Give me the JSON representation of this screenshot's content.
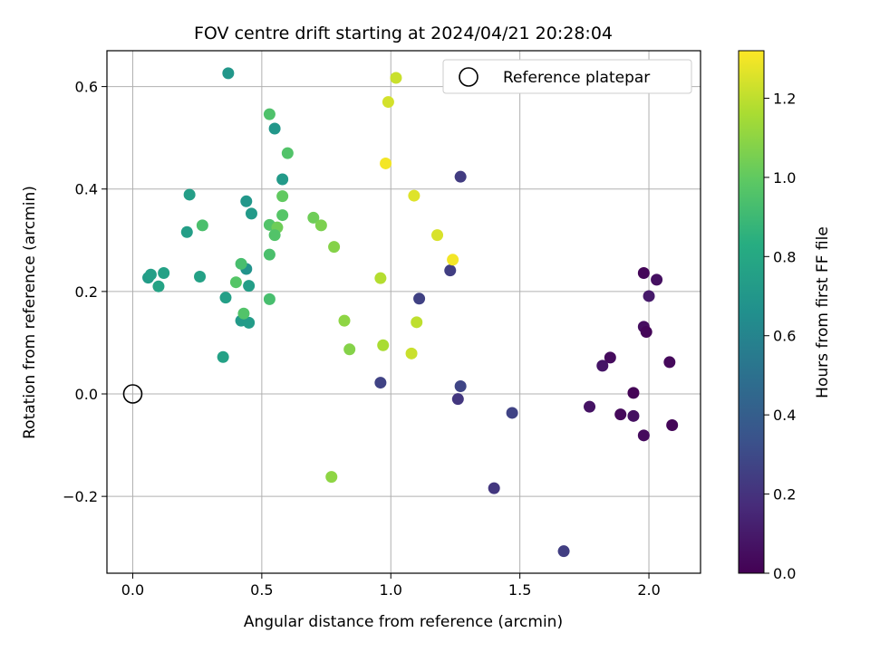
{
  "chart_data": {
    "type": "scatter",
    "title": "FOV centre drift starting at 2024/04/21 20:28:04",
    "xlabel": "Angular distance from reference (arcmin)",
    "ylabel": "Rotation from reference (arcmin)",
    "xlim": [
      -0.1,
      2.2
    ],
    "ylim": [
      -0.35,
      0.67
    ],
    "xticks": [
      0.0,
      0.5,
      1.0,
      1.5,
      2.0
    ],
    "xtick_labels": [
      "0.0",
      "0.5",
      "1.0",
      "1.5",
      "2.0"
    ],
    "yticks": [
      -0.2,
      0.0,
      0.2,
      0.4,
      0.6
    ],
    "ytick_labels": [
      "−0.2",
      "0.0",
      "0.2",
      "0.4",
      "0.6"
    ],
    "grid": true,
    "legend": {
      "placement": "upper-right",
      "entries": [
        "Reference platepar"
      ]
    },
    "reference_point": {
      "x": 0.0,
      "y": 0.0,
      "marker": "open-circle"
    },
    "colorbar": {
      "label": "Hours from first FF file",
      "range": [
        0.0,
        1.32
      ],
      "ticks": [
        0.0,
        0.2,
        0.4,
        0.6,
        0.8,
        1.0,
        1.2
      ],
      "tick_labels": [
        "0.0",
        "0.2",
        "0.4",
        "0.6",
        "0.8",
        "1.0",
        "1.2"
      ],
      "colormap": "viridis"
    },
    "points": [
      {
        "x": 1.98,
        "y": 0.236,
        "c": 0.02
      },
      {
        "x": 2.03,
        "y": 0.223,
        "c": 0.06
      },
      {
        "x": 2.0,
        "y": 0.191,
        "c": 0.1
      },
      {
        "x": 1.98,
        "y": 0.131,
        "c": 0.05
      },
      {
        "x": 1.99,
        "y": 0.121,
        "c": 0.02
      },
      {
        "x": 1.85,
        "y": 0.071,
        "c": 0.04
      },
      {
        "x": 1.82,
        "y": 0.055,
        "c": 0.08
      },
      {
        "x": 2.08,
        "y": 0.062,
        "c": 0.03
      },
      {
        "x": 1.94,
        "y": 0.002,
        "c": 0.01
      },
      {
        "x": 1.77,
        "y": -0.025,
        "c": 0.07
      },
      {
        "x": 1.89,
        "y": -0.04,
        "c": 0.03
      },
      {
        "x": 1.94,
        "y": -0.043,
        "c": 0.06
      },
      {
        "x": 2.09,
        "y": -0.061,
        "c": 0.02
      },
      {
        "x": 1.98,
        "y": -0.081,
        "c": 0.04
      },
      {
        "x": 1.27,
        "y": 0.424,
        "c": 0.24
      },
      {
        "x": 1.23,
        "y": 0.241,
        "c": 0.25
      },
      {
        "x": 1.11,
        "y": 0.186,
        "c": 0.26
      },
      {
        "x": 0.96,
        "y": 0.022,
        "c": 0.27
      },
      {
        "x": 1.27,
        "y": 0.015,
        "c": 0.28
      },
      {
        "x": 1.26,
        "y": -0.01,
        "c": 0.22
      },
      {
        "x": 1.47,
        "y": -0.037,
        "c": 0.27
      },
      {
        "x": 1.4,
        "y": -0.184,
        "c": 0.22
      },
      {
        "x": 1.67,
        "y": -0.307,
        "c": 0.25
      },
      {
        "x": 0.37,
        "y": 0.626,
        "c": 0.7
      },
      {
        "x": 0.55,
        "y": 0.518,
        "c": 0.7
      },
      {
        "x": 0.58,
        "y": 0.419,
        "c": 0.72
      },
      {
        "x": 0.22,
        "y": 0.389,
        "c": 0.74
      },
      {
        "x": 0.44,
        "y": 0.376,
        "c": 0.7
      },
      {
        "x": 0.46,
        "y": 0.352,
        "c": 0.72
      },
      {
        "x": 0.21,
        "y": 0.316,
        "c": 0.74
      },
      {
        "x": 0.44,
        "y": 0.244,
        "c": 0.68
      },
      {
        "x": 0.06,
        "y": 0.227,
        "c": 0.73
      },
      {
        "x": 0.07,
        "y": 0.233,
        "c": 0.75
      },
      {
        "x": 0.12,
        "y": 0.236,
        "c": 0.76
      },
      {
        "x": 0.26,
        "y": 0.229,
        "c": 0.76
      },
      {
        "x": 0.1,
        "y": 0.21,
        "c": 0.77
      },
      {
        "x": 0.45,
        "y": 0.211,
        "c": 0.74
      },
      {
        "x": 0.36,
        "y": 0.188,
        "c": 0.75
      },
      {
        "x": 0.42,
        "y": 0.143,
        "c": 0.72
      },
      {
        "x": 0.45,
        "y": 0.139,
        "c": 0.73
      },
      {
        "x": 0.35,
        "y": 0.072,
        "c": 0.76
      },
      {
        "x": 0.53,
        "y": 0.546,
        "c": 0.95
      },
      {
        "x": 0.6,
        "y": 0.47,
        "c": 0.96
      },
      {
        "x": 0.58,
        "y": 0.386,
        "c": 1.0
      },
      {
        "x": 0.58,
        "y": 0.349,
        "c": 0.97
      },
      {
        "x": 0.27,
        "y": 0.329,
        "c": 0.94
      },
      {
        "x": 0.53,
        "y": 0.33,
        "c": 0.96
      },
      {
        "x": 0.56,
        "y": 0.325,
        "c": 1.03
      },
      {
        "x": 0.55,
        "y": 0.31,
        "c": 0.96
      },
      {
        "x": 0.53,
        "y": 0.272,
        "c": 0.94
      },
      {
        "x": 0.42,
        "y": 0.254,
        "c": 0.93
      },
      {
        "x": 0.4,
        "y": 0.218,
        "c": 0.97
      },
      {
        "x": 0.53,
        "y": 0.185,
        "c": 0.93
      },
      {
        "x": 0.43,
        "y": 0.157,
        "c": 0.96
      },
      {
        "x": 0.7,
        "y": 0.344,
        "c": 1.03
      },
      {
        "x": 0.73,
        "y": 0.329,
        "c": 1.06
      },
      {
        "x": 0.78,
        "y": 0.287,
        "c": 1.08
      },
      {
        "x": 0.82,
        "y": 0.143,
        "c": 1.1
      },
      {
        "x": 0.84,
        "y": 0.087,
        "c": 1.08
      },
      {
        "x": 0.77,
        "y": -0.162,
        "c": 1.1
      },
      {
        "x": 1.02,
        "y": 0.617,
        "c": 1.22
      },
      {
        "x": 0.99,
        "y": 0.57,
        "c": 1.24
      },
      {
        "x": 0.98,
        "y": 0.45,
        "c": 1.3
      },
      {
        "x": 1.09,
        "y": 0.387,
        "c": 1.26
      },
      {
        "x": 1.18,
        "y": 0.31,
        "c": 1.25
      },
      {
        "x": 1.24,
        "y": 0.262,
        "c": 1.3
      },
      {
        "x": 0.96,
        "y": 0.226,
        "c": 1.18
      },
      {
        "x": 1.1,
        "y": 0.14,
        "c": 1.2
      },
      {
        "x": 0.97,
        "y": 0.095,
        "c": 1.16
      },
      {
        "x": 1.08,
        "y": 0.079,
        "c": 1.22
      }
    ]
  }
}
